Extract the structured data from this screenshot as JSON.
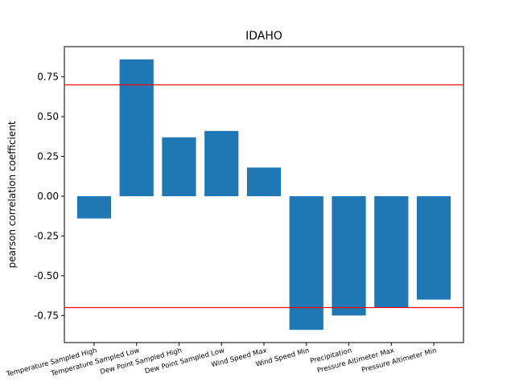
{
  "chart_data": {
    "type": "bar",
    "title": "IDAHO",
    "xlabel": "",
    "ylabel": "pearson correlation coefficient",
    "categories": [
      "Temperature Sampled High",
      "Temperature Sampled Low",
      "Dew Point Sampled High",
      "Dew Point Sampled Low",
      "Wind Speed Max",
      "Wind Speed Min",
      "Precipitation",
      "Pressure Altimeter Max",
      "Pressure Altimeter Min"
    ],
    "values": [
      -0.14,
      0.86,
      0.37,
      0.41,
      0.18,
      -0.84,
      -0.75,
      -0.7,
      -0.65
    ],
    "ylim": [
      -0.92,
      0.94
    ],
    "yticks": [
      "-0.75",
      "-0.50",
      "-0.25",
      "0.00",
      "0.25",
      "0.50",
      "0.75"
    ],
    "reference_lines": [
      0.7,
      -0.7
    ],
    "bar_color": "#1f77b4",
    "reference_line_color": "#ff0000",
    "grid": false
  }
}
